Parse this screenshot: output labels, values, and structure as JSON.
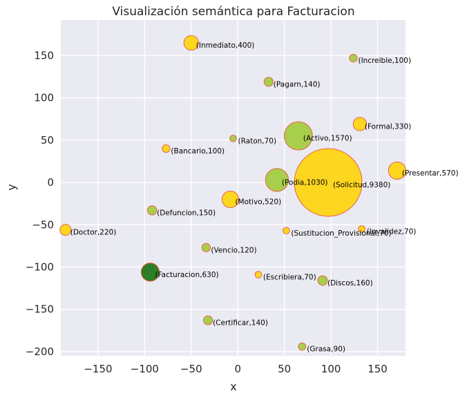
{
  "chart_data": {
    "type": "scatter",
    "title": "Visualización semántica para Facturacion",
    "xlabel": "x",
    "ylabel": "y",
    "xlim": [
      -190,
      180
    ],
    "ylim": [
      -205,
      192
    ],
    "xticks": [
      -150,
      -100,
      -50,
      0,
      50,
      100,
      150
    ],
    "yticks": [
      150,
      100,
      50,
      0,
      -50,
      -100,
      -150,
      -200
    ],
    "grid": true,
    "colors": {
      "background": "#eaeaf2",
      "grid": "#ffffff",
      "edge": "#e8604a"
    },
    "points": [
      {
        "label": "(Inmediato,400)",
        "x": -50,
        "y": 165,
        "size": 400,
        "color": "#fdd620"
      },
      {
        "label": "(Increible,100)",
        "x": 124,
        "y": 147,
        "size": 100,
        "color": "#a8cf4c"
      },
      {
        "label": "(Pagarn,140)",
        "x": 33,
        "y": 119,
        "size": 140,
        "color": "#a8cf4c"
      },
      {
        "label": "(Formal,330)",
        "x": 131,
        "y": 69,
        "size": 330,
        "color": "#fdd620"
      },
      {
        "label": "(Raton,70)",
        "x": -5,
        "y": 52,
        "size": 70,
        "color": "#a8cf4c"
      },
      {
        "label": "(Activo,1570)",
        "x": 65,
        "y": 55,
        "size": 1570,
        "color": "#a8cf4c"
      },
      {
        "label": "(Bancario,100)",
        "x": -77,
        "y": 40,
        "size": 100,
        "color": "#fdd620"
      },
      {
        "label": "(Presentar,570)",
        "x": 171,
        "y": 14,
        "size": 570,
        "color": "#fdd620"
      },
      {
        "label": "(Podia,1030)",
        "x": 42,
        "y": 3,
        "size": 1030,
        "color": "#a8cf4c"
      },
      {
        "label": "(Solicitud,9380)",
        "x": 97,
        "y": 0,
        "size": 9380,
        "color": "#fdd620"
      },
      {
        "label": "(Motivo,520)",
        "x": -8,
        "y": -20,
        "size": 520,
        "color": "#fdd620"
      },
      {
        "label": "(Defuncion,150)",
        "x": -92,
        "y": -33,
        "size": 150,
        "color": "#a8cf4c"
      },
      {
        "label": "(Doctor,220)",
        "x": -185,
        "y": -56,
        "size": 220,
        "color": "#fdd620"
      },
      {
        "label": "(Sustitucion_Provisional,70)",
        "x": 52,
        "y": -57,
        "size": 70,
        "color": "#fdd620"
      },
      {
        "label": "(Invalidez,70)",
        "x": 133,
        "y": -55,
        "size": 70,
        "color": "#fdd620"
      },
      {
        "label": "(Vencio,120)",
        "x": -34,
        "y": -77,
        "size": 120,
        "color": "#a8cf4c"
      },
      {
        "label": "(Facturacion,630)",
        "x": -94,
        "y": -106,
        "size": 630,
        "color": "#2e7d27"
      },
      {
        "label": "(Escribiera,70)",
        "x": 22,
        "y": -109,
        "size": 70,
        "color": "#fdd620"
      },
      {
        "label": "(Discos,160)",
        "x": 91,
        "y": -116,
        "size": 160,
        "color": "#a8cf4c"
      },
      {
        "label": "(Certificar,140)",
        "x": -32,
        "y": -163,
        "size": 140,
        "color": "#a8cf4c"
      },
      {
        "label": "(Grasa,90)",
        "x": 69,
        "y": -194,
        "size": 90,
        "color": "#a8cf4c"
      }
    ]
  }
}
